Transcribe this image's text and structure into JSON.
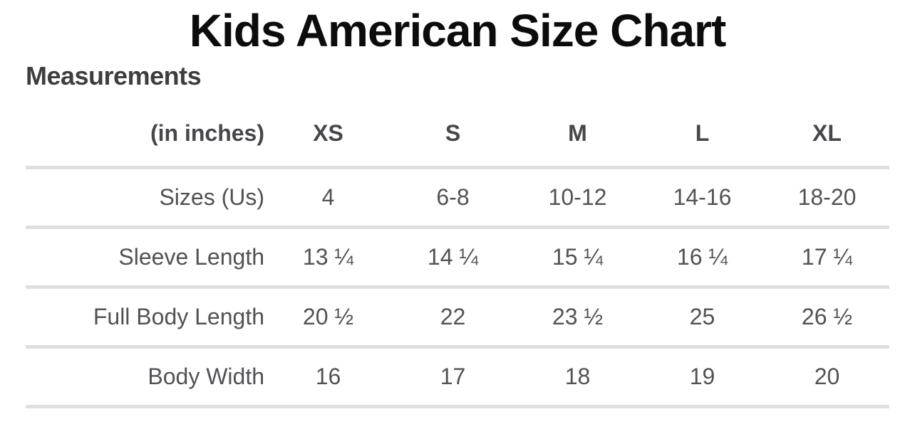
{
  "page": {
    "background": "#ffffff"
  },
  "colors": {
    "title_text": "#0c0c0c",
    "subtitle_text": "#3e3e40",
    "header_text": "#47474b",
    "body_text": "#525256",
    "divider": "#dfdfe1"
  },
  "chart_data": {
    "type": "table",
    "title": "Kids American Size Chart",
    "subtitle": "Measurements",
    "unit_note": "(in inches)",
    "columns": [
      "(in inches)",
      "XS",
      "S",
      "M",
      "L",
      "XL"
    ],
    "rows": [
      [
        "Sizes (Us)",
        "4",
        "6-8",
        "10-12",
        "14-16",
        "18-20"
      ],
      [
        "Sleeve Length",
        "13 ¼",
        "14 ¼",
        "15 ¼",
        "16 ¼",
        "17 ¼"
      ],
      [
        "Full Body Length",
        "20 ½",
        "22",
        "23 ½",
        "25",
        "26 ½"
      ],
      [
        "Body Width",
        "16",
        "17",
        "18",
        "19",
        "20"
      ]
    ],
    "layout_hints": {
      "label_column_alignment": "right",
      "data_column_alignment": "center",
      "grid": "horizontal-dividers-only"
    }
  }
}
